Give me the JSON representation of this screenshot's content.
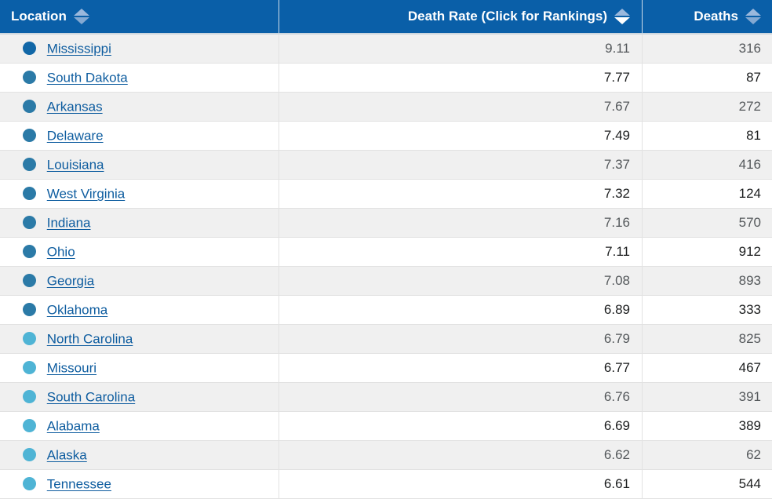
{
  "table": {
    "columns": [
      {
        "label": "Location",
        "sort": "none"
      },
      {
        "label": "Death Rate (Click for Rankings)",
        "sort": "desc"
      },
      {
        "label": "Deaths",
        "sort": "none"
      }
    ],
    "rows": [
      {
        "location": "Mississippi",
        "tier": "dark",
        "rate": "9.11",
        "deaths": "316"
      },
      {
        "location": "South Dakota",
        "tier": "mid",
        "rate": "7.77",
        "deaths": "87"
      },
      {
        "location": "Arkansas",
        "tier": "mid",
        "rate": "7.67",
        "deaths": "272"
      },
      {
        "location": "Delaware",
        "tier": "mid",
        "rate": "7.49",
        "deaths": "81"
      },
      {
        "location": "Louisiana",
        "tier": "mid",
        "rate": "7.37",
        "deaths": "416"
      },
      {
        "location": "West Virginia",
        "tier": "mid",
        "rate": "7.32",
        "deaths": "124"
      },
      {
        "location": "Indiana",
        "tier": "mid",
        "rate": "7.16",
        "deaths": "570"
      },
      {
        "location": "Ohio",
        "tier": "mid",
        "rate": "7.11",
        "deaths": "912"
      },
      {
        "location": "Georgia",
        "tier": "mid",
        "rate": "7.08",
        "deaths": "893"
      },
      {
        "location": "Oklahoma",
        "tier": "mid",
        "rate": "6.89",
        "deaths": "333"
      },
      {
        "location": "North Carolina",
        "tier": "light",
        "rate": "6.79",
        "deaths": "825"
      },
      {
        "location": "Missouri",
        "tier": "light",
        "rate": "6.77",
        "deaths": "467"
      },
      {
        "location": "South Carolina",
        "tier": "light",
        "rate": "6.76",
        "deaths": "391"
      },
      {
        "location": "Alabama",
        "tier": "light",
        "rate": "6.69",
        "deaths": "389"
      },
      {
        "location": "Alaska",
        "tier": "light",
        "rate": "6.62",
        "deaths": "62"
      },
      {
        "location": "Tennessee",
        "tier": "light",
        "rate": "6.61",
        "deaths": "544"
      }
    ]
  },
  "colors": {
    "header_bg": "#0a5fa8",
    "header_text": "#ffffff",
    "link": "#0d5c9f",
    "dot_dark": "#1167a7",
    "dot_mid": "#2b7aa7",
    "dot_light": "#4fb4d5",
    "stripe_row_bg": "#f0f0f0",
    "row_border": "#e2e2e2",
    "sort_neutral_up": "#9bb8dc",
    "sort_neutral_down": "#84a9d2",
    "sort_active": "#ffffff"
  }
}
